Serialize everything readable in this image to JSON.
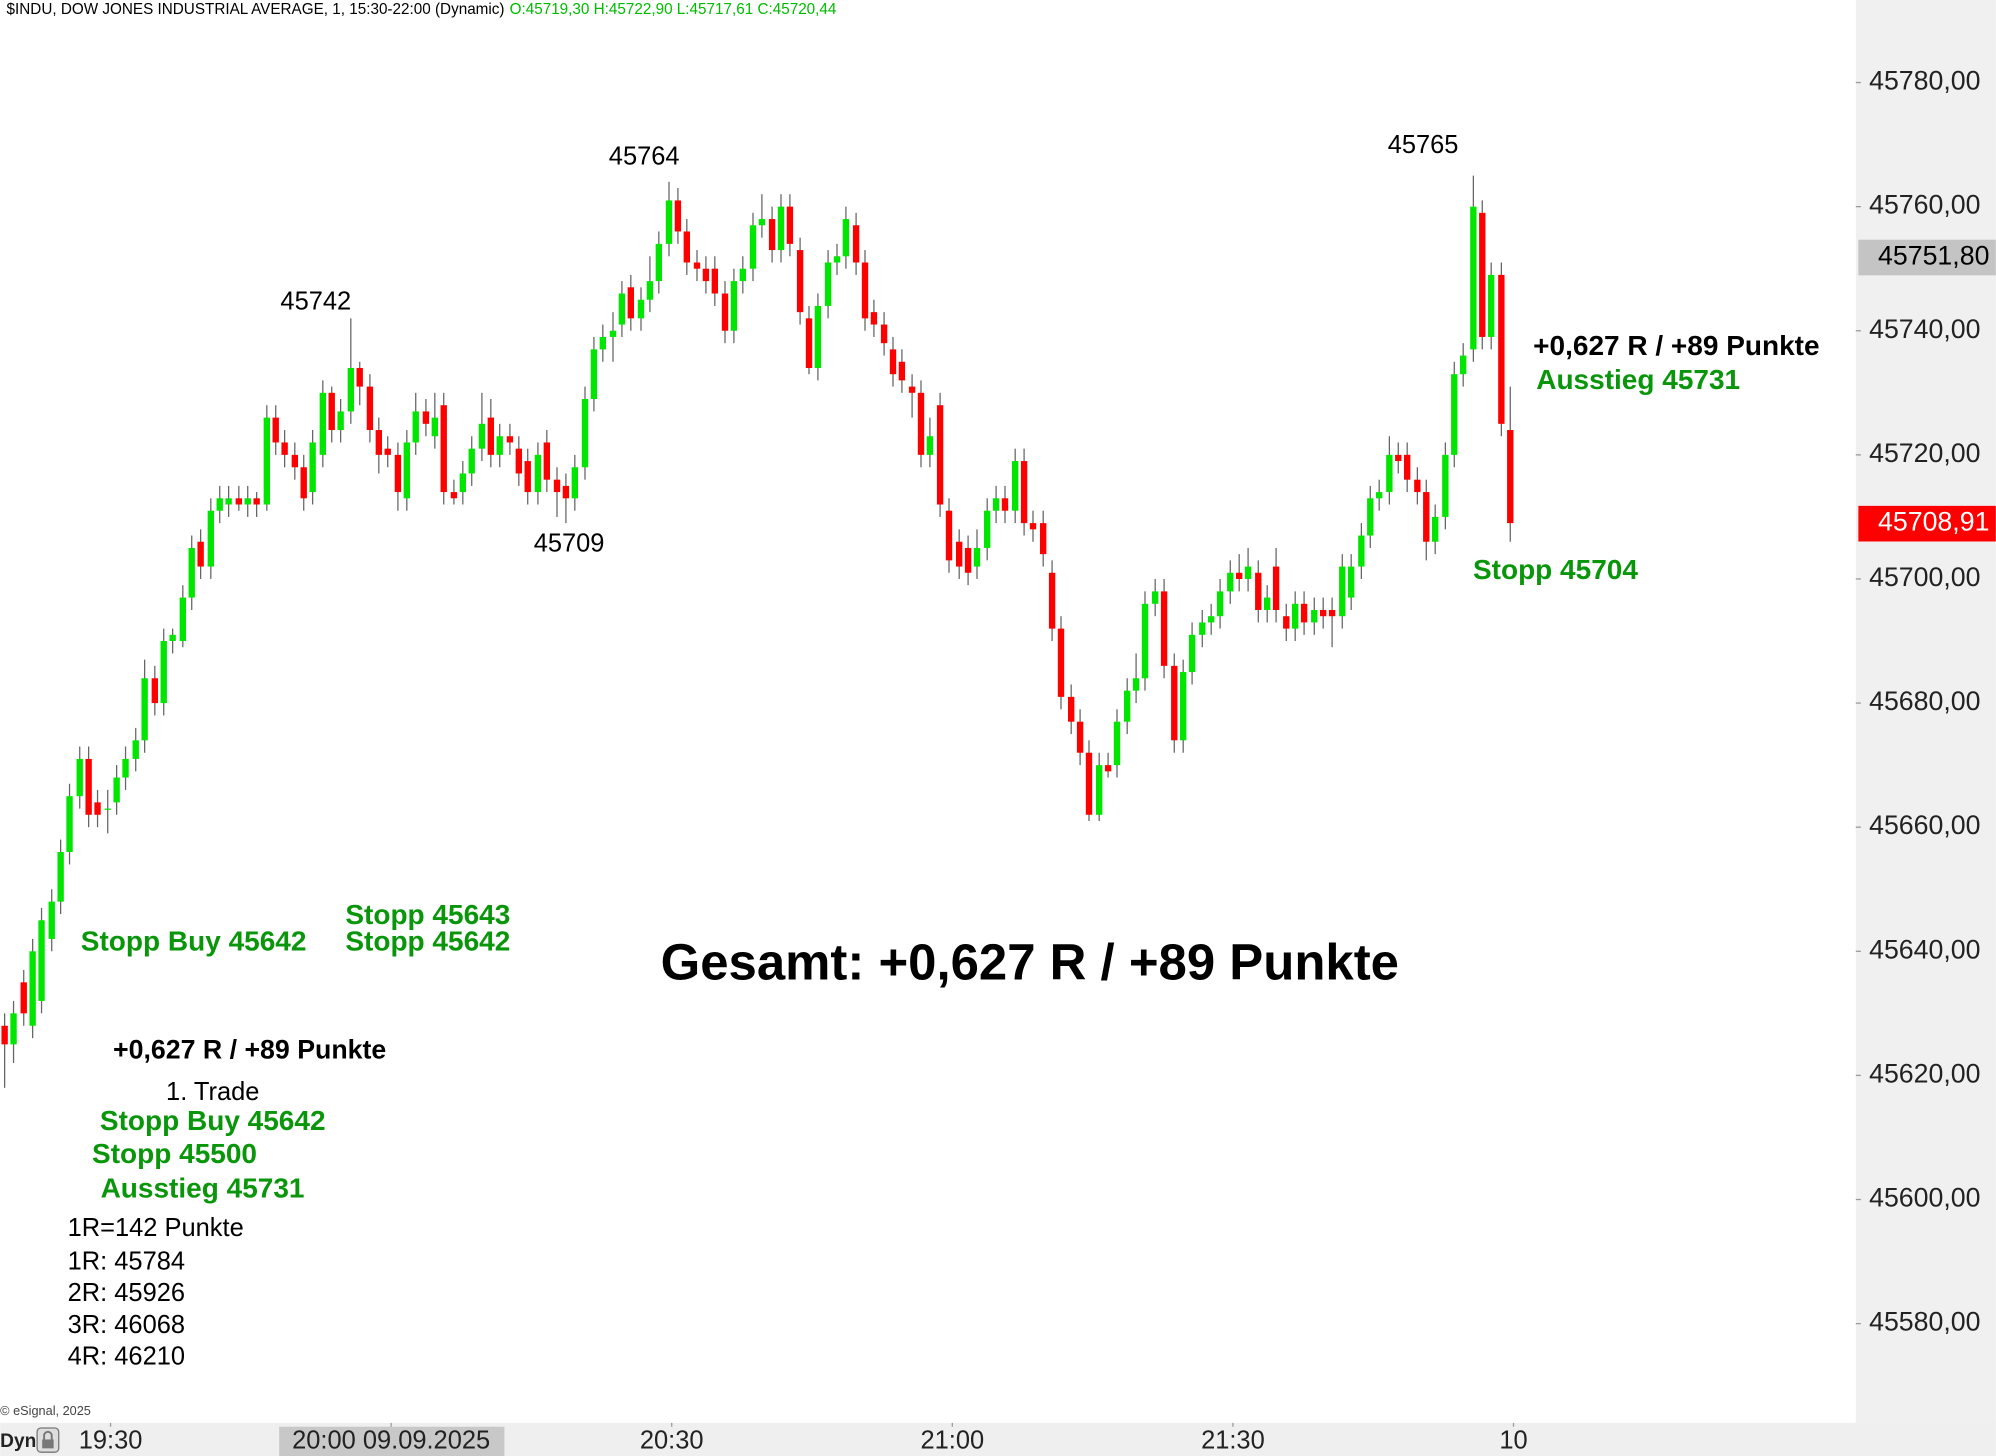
{
  "chart_data": {
    "type": "candlestick",
    "title": "$INDU, DOW JONES INDUSTRIAL AVERAGE, 1, 15:30-22:00 (Dynamic)",
    "subtitle": "O:45719,30 H:45722,90 L:45717,61 C:45720,44",
    "subtitle_color": "#00bb00",
    "up_color": "#00e600",
    "down_color": "#ff0000",
    "candles": [
      [
        45628,
        45630,
        45618,
        45625
      ],
      [
        45625,
        45632,
        45622,
        45630
      ],
      [
        45635,
        45637,
        45628,
        45630
      ],
      [
        45628,
        45642,
        45626,
        45640
      ],
      [
        45632,
        45647,
        45630,
        45645
      ],
      [
        45642,
        45650,
        45640,
        45648
      ],
      [
        45648,
        45658,
        45646,
        45656
      ],
      [
        45656,
        45667,
        45654,
        45665
      ],
      [
        45665,
        45673,
        45663,
        45671
      ],
      [
        45671,
        45673,
        45660,
        45662
      ],
      [
        45664,
        45666,
        45660,
        45662
      ],
      [
        45663,
        45666,
        45659,
        45663
      ],
      [
        45664,
        45670,
        45662,
        45668
      ],
      [
        45668,
        45673,
        45666,
        45671
      ],
      [
        45671,
        45676,
        45669,
        45674
      ],
      [
        45674,
        45687,
        45672,
        45684
      ],
      [
        45684,
        45686,
        45678,
        45680
      ],
      [
        45680,
        45692,
        45678,
        45690
      ],
      [
        45690,
        45692,
        45688,
        45691
      ],
      [
        45690,
        45699,
        45689,
        45697
      ],
      [
        45697,
        45707,
        45695,
        45705
      ],
      [
        45706,
        45708,
        45700,
        45702
      ],
      [
        45702,
        45713,
        45700,
        45711
      ],
      [
        45711,
        45715,
        45709,
        45713
      ],
      [
        45712,
        45715,
        45710,
        45713
      ],
      [
        45713,
        45715,
        45711,
        45712
      ],
      [
        45712,
        45715,
        45710,
        45713
      ],
      [
        45713,
        45714,
        45710,
        45712
      ],
      [
        45712,
        45728,
        45711,
        45726
      ],
      [
        45726,
        45728,
        45720,
        45722
      ],
      [
        45722,
        45724,
        45718,
        45720
      ],
      [
        45720,
        45722,
        45716,
        45718
      ],
      [
        45718,
        45720,
        45711,
        45713
      ],
      [
        45714,
        45724,
        45712,
        45722
      ],
      [
        45720,
        45732,
        45718,
        45730
      ],
      [
        45730,
        45731,
        45722,
        45724
      ],
      [
        45724,
        45729,
        45722,
        45727
      ],
      [
        45727,
        45742,
        45725,
        45734
      ],
      [
        45734,
        45735,
        45728,
        45731
      ],
      [
        45731,
        45733,
        45722,
        45724
      ],
      [
        45724,
        45726,
        45717,
        45720
      ],
      [
        45721,
        45723,
        45718,
        45720
      ],
      [
        45720,
        45722,
        45711,
        45714
      ],
      [
        45713,
        45724,
        45711,
        45722
      ],
      [
        45722,
        45730,
        45720,
        45727
      ],
      [
        45727,
        45729,
        45723,
        45725
      ],
      [
        45723,
        45730,
        45721,
        45726
      ],
      [
        45728,
        45730,
        45712,
        45714
      ],
      [
        45714,
        45716,
        45712,
        45713
      ],
      [
        45714,
        45719,
        45712,
        45717
      ],
      [
        45717,
        45723,
        45715,
        45721
      ],
      [
        45721,
        45730,
        45719,
        45725
      ],
      [
        45726,
        45729,
        45718,
        45720
      ],
      [
        45720,
        45725,
        45718,
        45723
      ],
      [
        45723,
        45725,
        45720,
        45722
      ],
      [
        45721,
        45723,
        45715,
        45717
      ],
      [
        45719,
        45721,
        45712,
        45714
      ],
      [
        45714,
        45722,
        45712,
        45720
      ],
      [
        45722,
        45724,
        45714,
        45716
      ],
      [
        45716,
        45718,
        45710,
        45714
      ],
      [
        45715,
        45717,
        45709,
        45713
      ],
      [
        45713,
        45720,
        45711,
        45718
      ],
      [
        45718,
        45731,
        45716,
        45729
      ],
      [
        45729,
        45739,
        45727,
        45737
      ],
      [
        45737,
        45741,
        45735,
        45739
      ],
      [
        45739,
        45743,
        45735,
        45740
      ],
      [
        45741,
        45748,
        45739,
        45746
      ],
      [
        45747,
        45749,
        45740,
        45742
      ],
      [
        45742,
        45747,
        45740,
        45745
      ],
      [
        45745,
        45752,
        45743,
        45748
      ],
      [
        45748,
        45756,
        45746,
        45754
      ],
      [
        45754,
        45764,
        45752,
        45761
      ],
      [
        45761,
        45763,
        45754,
        45756
      ],
      [
        45756,
        45758,
        45749,
        45751
      ],
      [
        45751,
        45753,
        45748,
        45750
      ],
      [
        45750,
        45752,
        45746,
        45748
      ],
      [
        45750,
        45752,
        45744,
        45746
      ],
      [
        45746,
        45748,
        45738,
        45740
      ],
      [
        45740,
        45750,
        45738,
        45748
      ],
      [
        45748,
        45752,
        45746,
        45750
      ],
      [
        45750,
        45759,
        45748,
        45757
      ],
      [
        45757,
        45762,
        45755,
        45758
      ],
      [
        45758,
        45760,
        45751,
        45753
      ],
      [
        45753,
        45762,
        45751,
        45760
      ],
      [
        45760,
        45762,
        45752,
        45754
      ],
      [
        45753,
        45755,
        45741,
        45743
      ],
      [
        45742,
        45744,
        45733,
        45734
      ],
      [
        45734,
        45746,
        45732,
        45744
      ],
      [
        45744,
        45753,
        45742,
        45751
      ],
      [
        45751,
        45754,
        45749,
        45752
      ],
      [
        45752,
        45760,
        45750,
        45758
      ],
      [
        45757,
        45759,
        45749,
        45751
      ],
      [
        45751,
        45753,
        45740,
        45742
      ],
      [
        45743,
        45745,
        45739,
        45741
      ],
      [
        45741,
        45743,
        45736,
        45738
      ],
      [
        45737,
        45739,
        45731,
        45733
      ],
      [
        45735,
        45737,
        45730,
        45732
      ],
      [
        45731,
        45733,
        45726,
        45730
      ],
      [
        45730,
        45732,
        45718,
        45720
      ],
      [
        45720,
        45726,
        45718,
        45723
      ],
      [
        45728,
        45730,
        45710,
        45712
      ],
      [
        45711,
        45713,
        45701,
        45703
      ],
      [
        45706,
        45708,
        45700,
        45702
      ],
      [
        45705,
        45707,
        45699,
        45701
      ],
      [
        45702,
        45708,
        45700,
        45705
      ],
      [
        45705,
        45713,
        45703,
        45711
      ],
      [
        45711,
        45715,
        45709,
        45713
      ],
      [
        45713,
        45715,
        45709,
        45711
      ],
      [
        45711,
        45721,
        45709,
        45719
      ],
      [
        45719,
        45721,
        45707,
        45709
      ],
      [
        45709,
        45711,
        45706,
        45708
      ],
      [
        45709,
        45711,
        45702,
        45704
      ],
      [
        45701,
        45703,
        45690,
        45692
      ],
      [
        45692,
        45694,
        45679,
        45681
      ],
      [
        45681,
        45683,
        45675,
        45677
      ],
      [
        45677,
        45679,
        45670,
        45672
      ],
      [
        45672,
        45674,
        45661,
        45662
      ],
      [
        45662,
        45672,
        45661,
        45670
      ],
      [
        45670,
        45672,
        45668,
        45669
      ],
      [
        45670,
        45679,
        45668,
        45677
      ],
      [
        45677,
        45684,
        45675,
        45682
      ],
      [
        45682,
        45688,
        45680,
        45684
      ],
      [
        45684,
        45698,
        45682,
        45696
      ],
      [
        45696,
        45700,
        45694,
        45698
      ],
      [
        45698,
        45700,
        45684,
        45686
      ],
      [
        45686,
        45688,
        45672,
        45674
      ],
      [
        45674,
        45687,
        45672,
        45685
      ],
      [
        45685,
        45693,
        45683,
        45691
      ],
      [
        45691,
        45695,
        45689,
        45693
      ],
      [
        45693,
        45696,
        45691,
        45694
      ],
      [
        45694,
        45700,
        45692,
        45698
      ],
      [
        45698,
        45703,
        45696,
        45701
      ],
      [
        45701,
        45704,
        45698,
        45700
      ],
      [
        45700,
        45705,
        45698,
        45702
      ],
      [
        45701,
        45703,
        45693,
        45695
      ],
      [
        45695,
        45699,
        45693,
        45697
      ],
      [
        45702,
        45705,
        45693,
        45695
      ],
      [
        45694,
        45696,
        45690,
        45692
      ],
      [
        45692,
        45698,
        45690,
        45696
      ],
      [
        45696,
        45698,
        45691,
        45693
      ],
      [
        45693,
        45697,
        45691,
        45695
      ],
      [
        45695,
        45697,
        45692,
        45694
      ],
      [
        45695,
        45697,
        45689,
        45694
      ],
      [
        45694,
        45704,
        45692,
        45702
      ],
      [
        45697,
        45704,
        45695,
        45702
      ],
      [
        45702,
        45709,
        45700,
        45707
      ],
      [
        45707,
        45715,
        45705,
        45713
      ],
      [
        45713,
        45716,
        45711,
        45714
      ],
      [
        45714,
        45723,
        45712,
        45720
      ],
      [
        45720,
        45722,
        45717,
        45719
      ],
      [
        45720,
        45722,
        45714,
        45716
      ],
      [
        45716,
        45718,
        45712,
        45714
      ],
      [
        45714,
        45716,
        45703,
        45706
      ],
      [
        45706,
        45712,
        45704,
        45710
      ],
      [
        45710,
        45722,
        45708,
        45720
      ],
      [
        45720,
        45735,
        45718,
        45733
      ],
      [
        45733,
        45738,
        45731,
        45736
      ],
      [
        45737,
        45765,
        45735,
        45760
      ],
      [
        45759,
        45761,
        45737,
        45739
      ],
      [
        45739,
        45751,
        45737,
        45749
      ],
      [
        45749,
        45751,
        45723,
        45725
      ],
      [
        45724,
        45731,
        45706,
        45709
      ]
    ],
    "xlim": [
      -0.4,
      198
    ],
    "xticks": [
      {
        "value": 11.4,
        "label": "19:30"
      },
      {
        "value": 41.4,
        "label": "20:00 09.09.2025",
        "highlighted": true
      },
      {
        "value": 71.4,
        "label": "20:30"
      },
      {
        "value": 101.4,
        "label": "21:00"
      },
      {
        "value": 131.4,
        "label": "21:30"
      },
      {
        "value": 161.4,
        "label": "10"
      }
    ],
    "ylim": [
      45564,
      45793.3
    ],
    "yticks": [
      {
        "value": 45580,
        "label": "45580,00"
      },
      {
        "value": 45600,
        "label": "45600,00"
      },
      {
        "value": 45620,
        "label": "45620,00"
      },
      {
        "value": 45640,
        "label": "45640,00"
      },
      {
        "value": 45660,
        "label": "45660,00"
      },
      {
        "value": 45680,
        "label": "45680,00"
      },
      {
        "value": 45700,
        "label": "45700,00"
      },
      {
        "value": 45720,
        "label": "45720,00"
      },
      {
        "value": 45740,
        "label": "45740,00"
      },
      {
        "value": 45760,
        "label": "45760,00"
      },
      {
        "value": 45780,
        "label": "45780,00"
      }
    ],
    "price_markers": [
      {
        "value": 45751.8,
        "label": "45751,80",
        "color": "#c4c4c4",
        "text_color": "#000000"
      },
      {
        "value": 45708.91,
        "label": "45708,91",
        "color": "#ff0000",
        "text_color": "#ffffff"
      }
    ],
    "annotations": [
      {
        "text": "45742",
        "color": "#000000"
      },
      {
        "text": "45764",
        "color": "#000000"
      },
      {
        "text": "45709",
        "color": "#000000"
      },
      {
        "text": "45765",
        "color": "#000000"
      },
      {
        "text": "+0,627 R / +89 Punkte",
        "color": "#000000",
        "bold": true
      },
      {
        "text": "Ausstieg 45731",
        "color": "#0a960a",
        "bold": true
      },
      {
        "text": "Stopp 45704",
        "color": "#0a960a",
        "bold": true
      },
      {
        "text": "Stopp 45643",
        "color": "#0a960a",
        "bold": true
      },
      {
        "text": "Stopp Buy 45642",
        "color": "#0a960a",
        "bold": true
      },
      {
        "text": "Stopp 45642",
        "color": "#0a960a",
        "bold": true
      },
      {
        "text": "Gesamt: +0,627 R / +89 Punkte",
        "color": "#000000",
        "bold": true
      },
      {
        "text": "+0,627 R / +89 Punkte",
        "color": "#000000",
        "bold": true
      },
      {
        "text": "1. Trade",
        "color": "#000000"
      },
      {
        "text": "Stopp Buy 45642",
        "color": "#0a960a",
        "bold": true
      },
      {
        "text": "Stopp 45500",
        "color": "#0a960a",
        "bold": true
      },
      {
        "text": "Ausstieg 45731",
        "color": "#0a960a",
        "bold": true
      },
      {
        "text": "1R=142 Punkte",
        "color": "#000000"
      },
      {
        "text": "1R: 45784",
        "color": "#000000"
      },
      {
        "text": "2R: 45926",
        "color": "#000000"
      },
      {
        "text": "3R: 46068",
        "color": "#000000"
      },
      {
        "text": "4R: 46210",
        "color": "#000000"
      }
    ],
    "copyright": "© eSignal, 2025",
    "mode_label": "Dyn"
  }
}
